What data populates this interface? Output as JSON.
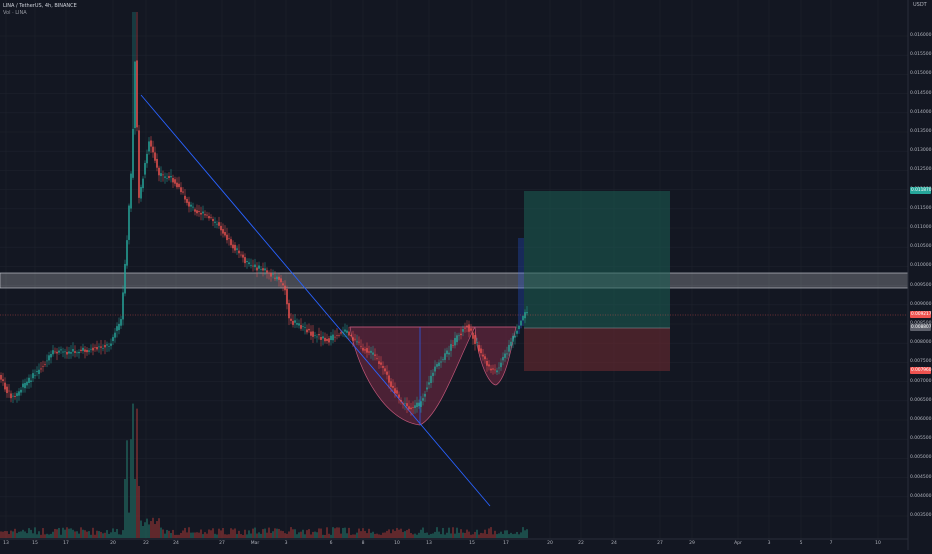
{
  "header": {
    "symbol_line": "LINA / TetherUS, 4h, BINANCE",
    "vol_line": "Vol · LINA"
  },
  "axis": {
    "currency": "USDT",
    "price_labels": [
      "0.016000",
      "0.015500",
      "0.015000",
      "0.014500",
      "0.014000",
      "0.013500",
      "0.013000",
      "0.012500",
      "0.012000",
      "0.011500",
      "0.011000",
      "0.010500",
      "0.010000",
      "0.009500",
      "0.009000",
      "0.008500",
      "0.008000",
      "0.007500",
      "0.007000",
      "0.006500",
      "0.006000",
      "0.005500",
      "0.005000",
      "0.004500",
      "0.004000",
      "0.003500"
    ],
    "date_labels": [
      "13",
      "15",
      "17",
      "20",
      "22",
      "24",
      "27",
      "Mar",
      "3",
      "6",
      "8",
      "10",
      "13",
      "15",
      "17",
      "20",
      "22",
      "24",
      "27",
      "29",
      "Apr",
      "3",
      "5",
      "7",
      "10"
    ]
  },
  "tags": {
    "target": "0.011870",
    "current": "0.009217",
    "entry": "0.008807",
    "stop": "0.007960"
  },
  "colors": {
    "background": "#131722",
    "up": "#26a69a",
    "down": "#ef5350",
    "trendline": "#2962ff",
    "profit_zone": "#1b5e54",
    "loss_zone": "#6b2a30",
    "cup_fill": "#7a2946"
  },
  "chart_data": {
    "type": "candlestick",
    "ylim": [
      0.0033,
      0.0171
    ],
    "levels": {
      "resistance_top": 0.01,
      "resistance_bottom": 0.0096,
      "target": 0.01187,
      "entry": 0.008807,
      "stop": 0.00796,
      "current": 0.009217
    }
  }
}
